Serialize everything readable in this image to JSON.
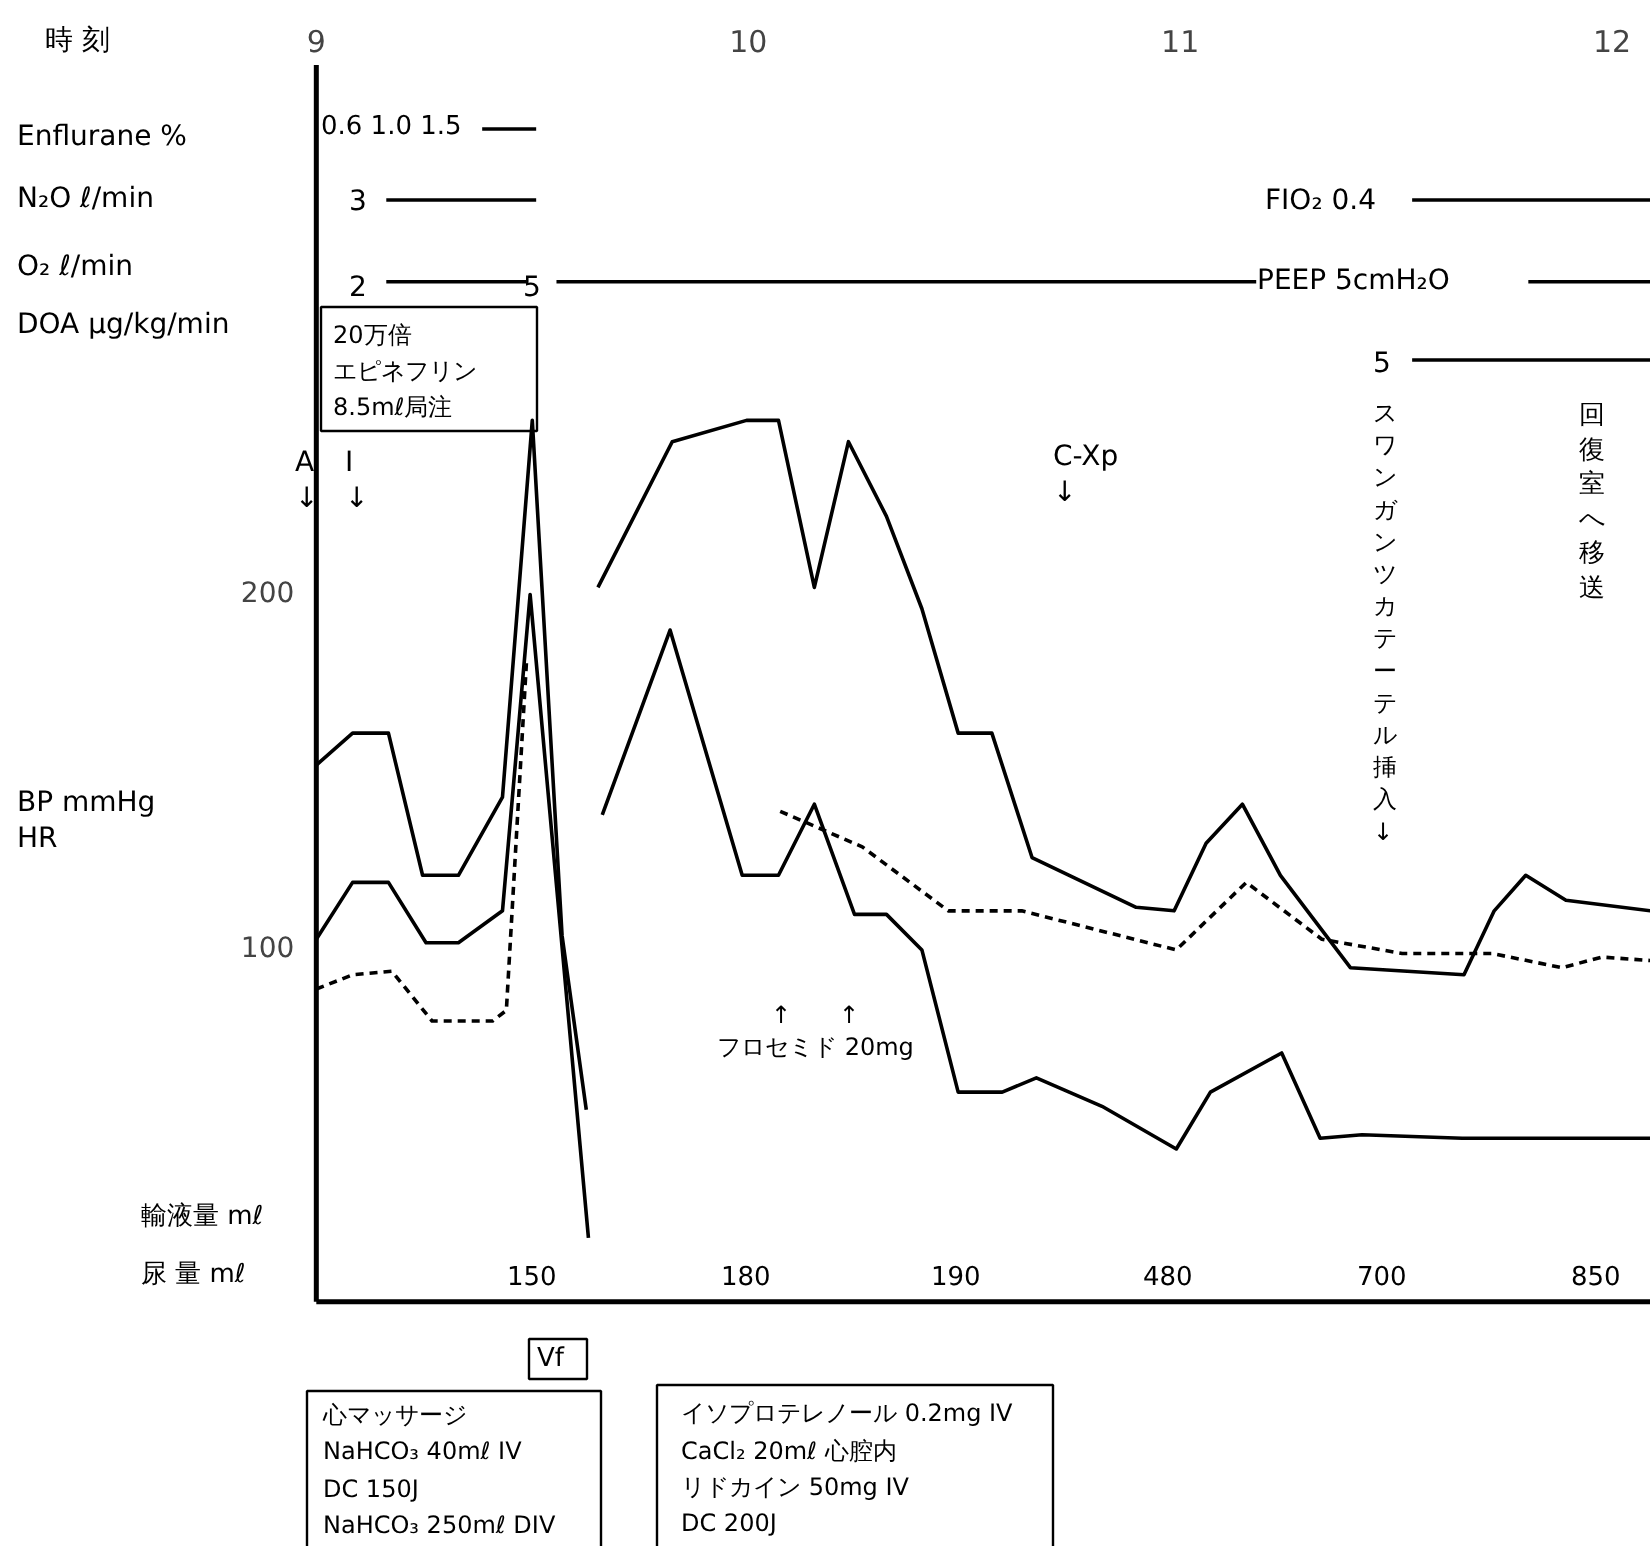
{
  "chart_data": {
    "type": "line",
    "xlim": [
      8.27,
      12.09
    ],
    "ylim": [
      -69,
      366
    ],
    "ref_lines": [
      {
        "axis": "y",
        "value": 0
      },
      {
        "axis": "x",
        "value": 9
      }
    ],
    "xticks": [
      9,
      10,
      11,
      12
    ],
    "yticks": [
      100,
      200
    ],
    "series": [
      {
        "color": "#000000",
        "line_style": "solid",
        "x": [
          9.0,
          9.084,
          9.167,
          9.246,
          9.329,
          9.431,
          9.5,
          9.569,
          9.625,
          null,
          9.652,
          9.824,
          9.996,
          10.07,
          10.153,
          10.232,
          10.32,
          10.402,
          10.486,
          10.564,
          10.657,
          10.898,
          10.986,
          11.06,
          11.144,
          11.232,
          11.394,
          11.657,
          11.727,
          11.8,
          11.893,
          12.09
        ],
        "values": [
          151,
          160,
          160,
          120,
          120,
          142,
          248,
          103,
          54,
          null,
          201,
          242,
          248,
          248,
          201,
          242,
          221,
          195,
          160,
          160,
          125,
          111,
          110,
          129,
          140,
          120,
          94,
          92,
          110,
          120,
          113,
          110
        ]
      },
      {
        "color": "#000000",
        "line_style": "solid",
        "x": [
          9.0,
          9.084,
          9.167,
          9.254,
          9.329,
          9.431,
          9.495,
          9.63,
          null,
          9.662,
          9.819,
          9.986,
          10.07,
          10.153,
          10.246,
          10.32,
          10.402,
          10.486,
          10.588,
          10.667,
          10.819,
          10.991,
          11.07,
          11.235,
          11.324,
          11.421,
          11.653,
          12.09
        ],
        "values": [
          102,
          118,
          118,
          101,
          101,
          110,
          199,
          18,
          null,
          137,
          189,
          120,
          120,
          140,
          109,
          109,
          99,
          59,
          59,
          63,
          55,
          43,
          59,
          70,
          46,
          47,
          46,
          46
        ]
      },
      {
        "color": "#000000",
        "line_style": "dashed",
        "x": [
          9.0,
          9.084,
          9.175,
          9.268,
          9.408,
          9.44,
          9.487,
          null,
          10.074,
          10.264,
          10.463,
          10.633,
          10.991,
          11.153,
          11.328,
          11.514,
          11.722,
          11.884,
          11.977,
          12.09
        ],
        "values": [
          88,
          92,
          93,
          79,
          79,
          82,
          181,
          null,
          138,
          128,
          110,
          110,
          99,
          118,
          102,
          98,
          98,
          94,
          97,
          96
        ]
      },
      {
        "color": "#000000",
        "line_style": "solid",
        "x": [
          9.384,
          9.509
        ],
        "values": [
          330,
          330
        ]
      },
      {
        "color": "#000000",
        "line_style": "solid",
        "x": [
          9.162,
          9.509
        ],
        "values": [
          310,
          310
        ]
      },
      {
        "color": "#000000",
        "line_style": "solid",
        "x": [
          9.162,
          9.486,
          null,
          9.556,
          11.176,
          null,
          11.806,
          12.09
        ],
        "values": [
          287,
          287,
          null,
          287,
          287,
          null,
          287,
          287
        ]
      },
      {
        "color": "#000000",
        "line_style": "solid",
        "x": [
          11.537,
          12.09
        ],
        "values": [
          310,
          310
        ]
      },
      {
        "color": "#000000",
        "line_style": "solid",
        "x": [
          11.537,
          12.09
        ],
        "values": [
          265,
          265
        ]
      }
    ],
    "annotations": [
      "時 刻",
      "Enflurane %",
      "0.6 1.0 1.5",
      "N₂O     ℓ/min",
      "3",
      "O₂       ℓ/min",
      "2",
      "5",
      "PEEP 5cmH₂O",
      "FIO₂ 0.4",
      "DOA μg/kg/min",
      "5",
      "20万倍",
      "エピネフリン",
      "8.5mℓ局注",
      "A ↓",
      "I ↓",
      "C-Xp ↓",
      "スワンガンツカテーテル挿入↓",
      "回復室へ移送",
      "BP mmHg HR",
      "↑",
      "↑",
      "フロセミド 20mg",
      "輸液量 mℓ",
      "尿 量 mℓ",
      "150",
      "180",
      "190",
      "480",
      "700",
      "850",
      "Vf",
      "心マッサージ",
      "NaHCO₃ 40mℓ IV",
      "DC 150J",
      "NaHCO₃ 250mℓ DIV",
      "イソプロテレノール 0.2mg IV",
      "CaCl₂ 20mℓ 心腔内",
      "リドカイン 50mg IV",
      "DC 200J"
    ]
  }
}
